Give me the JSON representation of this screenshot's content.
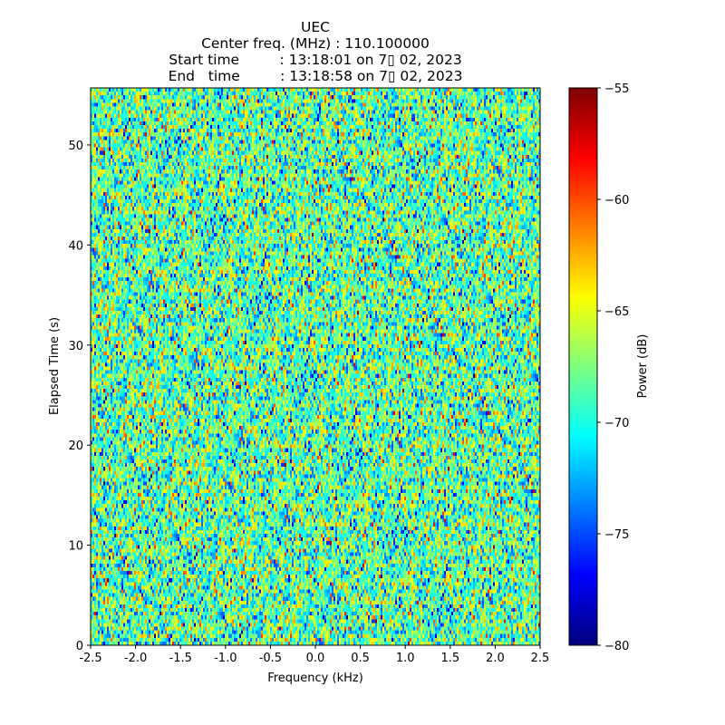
{
  "chart_data": {
    "type": "heatmap",
    "title_lines": [
      "UEC",
      "Center freq. (MHz) : 110.100000",
      "Start time         : 13:18:01 on 7▯ 02, 2023",
      "End   time         : 13:18:58 on 7▯ 02, 2023"
    ],
    "xlabel": "Frequency (kHz)",
    "ylabel": "Elapsed Time (s)",
    "xlim": [
      -2.5,
      2.5
    ],
    "ylim": [
      0,
      55.7
    ],
    "xticks": [
      "-2.5",
      "-2.0",
      "-1.5",
      "-1.0",
      "-0.5",
      "0.0",
      "0.5",
      "1.0",
      "1.5",
      "2.0",
      "2.5"
    ],
    "xtick_values": [
      -2.5,
      -2.0,
      -1.5,
      -1.0,
      -0.5,
      0.0,
      0.5,
      1.0,
      1.5,
      2.0,
      2.5
    ],
    "yticks": [
      "0",
      "10",
      "20",
      "30",
      "40",
      "50"
    ],
    "ytick_values": [
      0,
      10,
      20,
      30,
      40,
      50
    ],
    "colorbar": {
      "label": "Power (dB)",
      "range": [
        -80,
        -55
      ],
      "ticks": [
        "−55",
        "−60",
        "−65",
        "−70",
        "−75",
        "−80"
      ],
      "tick_values": [
        -55,
        -60,
        -65,
        -70,
        -75,
        -80
      ],
      "colormap": "jet"
    },
    "grid": false,
    "noise": {
      "columns": 248,
      "rows": 150,
      "mean_db": -68.5,
      "std_db": 3.6,
      "description_values": "random noise power, mostly -75 to -62 dB"
    }
  }
}
